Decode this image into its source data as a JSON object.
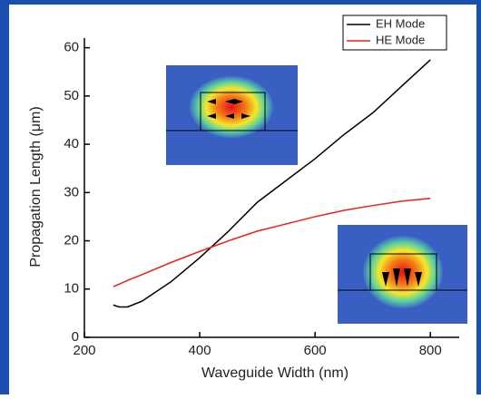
{
  "chart_data": {
    "type": "line",
    "xlabel": "Waveguide Width (nm)",
    "ylabel": "Propagation Length (μm)",
    "xlim": [
      200,
      850
    ],
    "ylim": [
      0,
      62
    ],
    "xticks": [
      200,
      400,
      600,
      800
    ],
    "yticks": [
      0,
      10,
      20,
      30,
      40,
      50,
      60
    ],
    "x": [
      250,
      260,
      275,
      300,
      350,
      400,
      450,
      500,
      550,
      600,
      650,
      700,
      750,
      800
    ],
    "series": [
      {
        "name": "EH Mode",
        "color": "#000000",
        "values": [
          6.7,
          6.3,
          6.3,
          7.5,
          11.5,
          16.5,
          22,
          28,
          32.5,
          37,
          42,
          46.5,
          52,
          57.5
        ]
      },
      {
        "name": "HE Mode",
        "color": "#e8211d",
        "values": [
          10.5,
          11,
          11.8,
          13,
          15.5,
          17.8,
          20,
          22,
          23.5,
          25,
          26.3,
          27.3,
          28.2,
          28.8
        ]
      }
    ],
    "legend": "top-right"
  }
}
